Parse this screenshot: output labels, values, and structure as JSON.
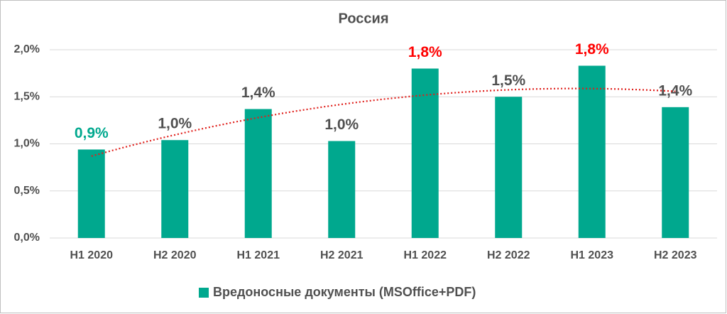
{
  "chart_data": {
    "type": "bar",
    "title": "Россия",
    "categories": [
      "H1 2020",
      "H2 2020",
      "H1 2021",
      "H2 2021",
      "H1 2022",
      "H2 2022",
      "H1 2023",
      "H2 2023"
    ],
    "series": [
      {
        "name": "Вредоносные документы (MSOffice+PDF)",
        "color": "#00a88e",
        "values": [
          0.94,
          1.04,
          1.37,
          1.03,
          1.8,
          1.5,
          1.83,
          1.39
        ],
        "value_labels": [
          "0,9%",
          "1,0%",
          "1,4%",
          "1,0%",
          "1,8%",
          "1,5%",
          "1,8%",
          "1,4%"
        ],
        "value_label_colors": [
          "#00a88e",
          "#505050",
          "#505050",
          "#505050",
          "#ff0000",
          "#505050",
          "#ff0000",
          "#505050"
        ]
      }
    ],
    "trendline": {
      "type": "polynomial",
      "order": 2,
      "color": "#e0201c"
    },
    "ylim": [
      0,
      2
    ],
    "yticks": [
      {
        "value": 0,
        "label": "0,0%"
      },
      {
        "value": 0.5,
        "label": "0,5%"
      },
      {
        "value": 1,
        "label": "1,0%"
      },
      {
        "value": 1.5,
        "label": "1,5%"
      },
      {
        "value": 2,
        "label": "2,0%"
      }
    ],
    "grid": true,
    "legend": "bottom"
  }
}
